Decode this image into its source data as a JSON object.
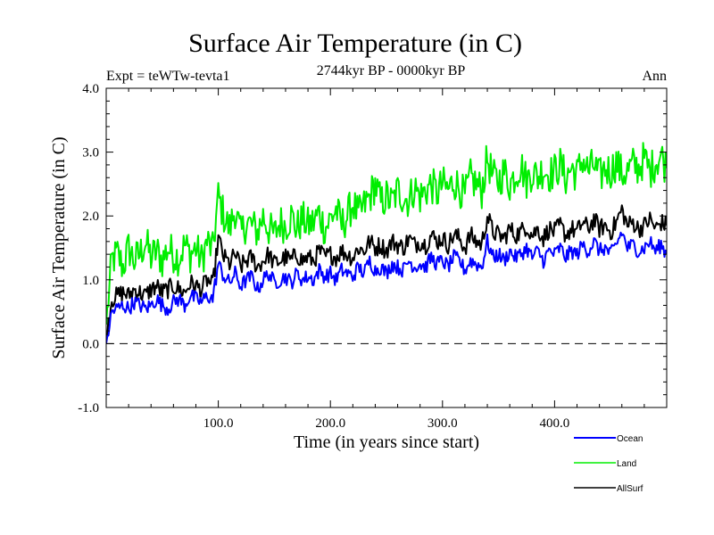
{
  "chart_data": {
    "type": "line",
    "title": "Surface Air Temperature (in C)",
    "subtitle": "2744kyr BP - 0000kyr BP",
    "left_label": "Expt = teWTw-tevta1",
    "right_label": "Ann",
    "xlabel": "Time (in years since start)",
    "ylabel": "Surface Air Temperature (in C)",
    "xlim": [
      0,
      500
    ],
    "ylim": [
      -1.0,
      4.0
    ],
    "xticks": [
      100,
      200,
      300,
      400
    ],
    "xtick_labels": [
      "100.0",
      "200.0",
      "300.0",
      "400.0"
    ],
    "yticks": [
      -1.0,
      0.0,
      1.0,
      2.0,
      3.0,
      4.0
    ],
    "ytick_labels": [
      "-1.0",
      "0.0",
      "1.0",
      "2.0",
      "3.0",
      "4.0"
    ],
    "reference_line": {
      "y": 0.0,
      "style": "dashed"
    },
    "legend_position": "bottom-right",
    "x": [
      0,
      5,
      10,
      15,
      20,
      25,
      30,
      35,
      40,
      45,
      50,
      55,
      60,
      65,
      70,
      75,
      80,
      85,
      90,
      95,
      100,
      105,
      110,
      115,
      120,
      125,
      130,
      135,
      140,
      145,
      150,
      155,
      160,
      165,
      170,
      175,
      180,
      185,
      190,
      195,
      200,
      205,
      210,
      215,
      220,
      225,
      230,
      235,
      240,
      245,
      250,
      255,
      260,
      265,
      270,
      275,
      280,
      285,
      290,
      295,
      300,
      305,
      310,
      315,
      320,
      325,
      330,
      335,
      340,
      345,
      350,
      355,
      360,
      365,
      370,
      375,
      380,
      385,
      390,
      395,
      400,
      405,
      410,
      415,
      420,
      425,
      430,
      435,
      440,
      445,
      450,
      455,
      460,
      465,
      470,
      475,
      480,
      485,
      490,
      495,
      500
    ],
    "series": [
      {
        "name": "Ocean",
        "color": "#0000ff",
        "values": [
          0.0,
          0.5,
          0.55,
          0.6,
          0.55,
          0.65,
          0.6,
          0.55,
          0.6,
          0.7,
          0.6,
          0.55,
          0.65,
          0.7,
          0.6,
          0.75,
          0.7,
          0.65,
          0.75,
          0.7,
          1.25,
          1.05,
          0.95,
          1.1,
          0.9,
          1.0,
          1.05,
          0.85,
          1.0,
          1.1,
          0.95,
          1.0,
          1.05,
          0.95,
          1.1,
          1.0,
          1.05,
          1.0,
          1.15,
          1.05,
          1.1,
          1.0,
          1.15,
          1.1,
          1.05,
          1.2,
          1.1,
          1.3,
          1.15,
          1.2,
          1.1,
          1.25,
          1.2,
          1.15,
          1.3,
          1.2,
          1.25,
          1.2,
          1.35,
          1.25,
          1.3,
          1.2,
          1.35,
          1.3,
          1.15,
          1.3,
          1.25,
          1.2,
          1.6,
          1.35,
          1.4,
          1.3,
          1.45,
          1.35,
          1.4,
          1.5,
          1.35,
          1.45,
          1.3,
          1.45,
          1.4,
          1.5,
          1.35,
          1.45,
          1.4,
          1.55,
          1.45,
          1.6,
          1.45,
          1.5,
          1.4,
          1.55,
          1.75,
          1.5,
          1.55,
          1.45,
          1.5,
          1.6,
          1.45,
          1.55,
          1.4
        ]
      },
      {
        "name": "Land",
        "color": "#00ee00",
        "values": [
          0.3,
          1.3,
          1.4,
          1.2,
          1.5,
          1.3,
          1.4,
          1.6,
          1.35,
          1.45,
          1.3,
          1.5,
          1.4,
          1.35,
          1.55,
          1.4,
          1.5,
          1.3,
          1.6,
          1.45,
          2.3,
          2.0,
          1.8,
          2.1,
          1.7,
          1.9,
          1.85,
          1.75,
          2.0,
          1.8,
          1.7,
          1.9,
          1.85,
          2.0,
          1.8,
          1.95,
          1.85,
          1.9,
          2.05,
          1.8,
          1.95,
          2.1,
          1.85,
          2.0,
          2.2,
          2.0,
          2.15,
          2.3,
          2.5,
          2.2,
          2.3,
          2.2,
          2.4,
          2.3,
          2.25,
          2.45,
          2.3,
          2.4,
          2.5,
          2.35,
          2.5,
          2.4,
          2.55,
          2.45,
          2.3,
          2.6,
          2.5,
          2.4,
          2.9,
          2.6,
          2.55,
          2.7,
          2.5,
          2.65,
          2.8,
          2.55,
          2.7,
          2.6,
          2.75,
          2.65,
          2.7,
          2.8,
          2.6,
          2.75,
          2.65,
          2.9,
          2.7,
          2.8,
          2.6,
          2.75,
          2.7,
          2.85,
          2.65,
          2.7,
          2.8,
          2.75,
          2.9,
          2.7,
          2.85,
          2.95,
          2.75
        ]
      },
      {
        "name": "AllSurf",
        "color": "#000000",
        "values": [
          0.15,
          0.7,
          0.75,
          0.8,
          0.75,
          0.85,
          0.8,
          0.75,
          0.85,
          0.9,
          0.8,
          0.85,
          0.9,
          0.85,
          0.8,
          0.95,
          0.9,
          0.85,
          1.0,
          0.9,
          1.65,
          1.35,
          1.25,
          1.4,
          1.2,
          1.3,
          1.35,
          1.2,
          1.3,
          1.4,
          1.25,
          1.3,
          1.35,
          1.3,
          1.4,
          1.3,
          1.35,
          1.3,
          1.45,
          1.35,
          1.4,
          1.35,
          1.45,
          1.4,
          1.35,
          1.5,
          1.45,
          1.6,
          1.5,
          1.55,
          1.45,
          1.6,
          1.55,
          1.5,
          1.65,
          1.55,
          1.6,
          1.55,
          1.7,
          1.6,
          1.65,
          1.55,
          1.7,
          1.65,
          1.5,
          1.7,
          1.6,
          1.55,
          2.0,
          1.75,
          1.7,
          1.65,
          1.8,
          1.7,
          1.75,
          1.85,
          1.7,
          1.8,
          1.65,
          1.8,
          1.75,
          1.85,
          1.7,
          1.8,
          1.75,
          1.9,
          1.8,
          1.95,
          1.8,
          1.85,
          1.75,
          1.9,
          2.1,
          1.85,
          1.9,
          1.8,
          1.85,
          1.95,
          1.8,
          1.9,
          1.85
        ]
      }
    ]
  }
}
